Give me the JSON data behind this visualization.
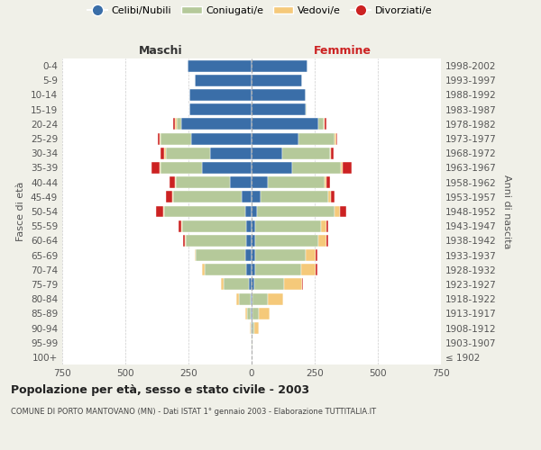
{
  "age_groups": [
    "100+",
    "95-99",
    "90-94",
    "85-89",
    "80-84",
    "75-79",
    "70-74",
    "65-69",
    "60-64",
    "55-59",
    "50-54",
    "45-49",
    "40-44",
    "35-39",
    "30-34",
    "25-29",
    "20-24",
    "15-19",
    "10-14",
    "5-9",
    "0-4"
  ],
  "birth_years": [
    "≤ 1902",
    "1903-1907",
    "1908-1912",
    "1913-1917",
    "1918-1922",
    "1923-1927",
    "1928-1932",
    "1933-1937",
    "1938-1942",
    "1943-1947",
    "1948-1952",
    "1953-1957",
    "1958-1962",
    "1963-1967",
    "1968-1972",
    "1973-1977",
    "1978-1982",
    "1983-1987",
    "1988-1992",
    "1993-1997",
    "1998-2002"
  ],
  "maschi_celibi": [
    0,
    0,
    0,
    2,
    5,
    10,
    20,
    25,
    20,
    20,
    25,
    40,
    85,
    195,
    165,
    240,
    280,
    245,
    245,
    225,
    255
  ],
  "maschi_coniugati": [
    0,
    1,
    5,
    15,
    45,
    100,
    165,
    195,
    240,
    255,
    320,
    270,
    215,
    165,
    175,
    120,
    15,
    2,
    0,
    0,
    0
  ],
  "maschi_vedovi": [
    0,
    0,
    2,
    8,
    10,
    10,
    10,
    5,
    5,
    5,
    5,
    5,
    5,
    5,
    5,
    5,
    10,
    0,
    0,
    0,
    0
  ],
  "maschi_divorziati": [
    0,
    0,
    0,
    0,
    0,
    0,
    0,
    0,
    5,
    10,
    30,
    25,
    20,
    30,
    15,
    5,
    5,
    0,
    0,
    0,
    0
  ],
  "femmine_nubili": [
    0,
    0,
    2,
    5,
    5,
    10,
    15,
    15,
    15,
    15,
    20,
    35,
    65,
    160,
    120,
    185,
    265,
    215,
    215,
    200,
    220
  ],
  "femmine_coniugate": [
    0,
    2,
    10,
    25,
    60,
    120,
    180,
    200,
    250,
    260,
    310,
    270,
    225,
    195,
    190,
    145,
    20,
    2,
    0,
    0,
    0
  ],
  "femmine_vedove": [
    0,
    2,
    15,
    40,
    60,
    70,
    60,
    40,
    30,
    20,
    20,
    10,
    5,
    5,
    5,
    5,
    5,
    0,
    0,
    0,
    0
  ],
  "femmine_divorziate": [
    0,
    0,
    0,
    0,
    0,
    5,
    5,
    5,
    10,
    10,
    25,
    15,
    15,
    35,
    10,
    5,
    5,
    0,
    0,
    0,
    0
  ],
  "color_cel": "#3a6ea8",
  "color_con": "#b5c99a",
  "color_ved": "#f5c97a",
  "color_div": "#cc2222",
  "bg_color": "#f0f0e8",
  "plot_bg": "#ffffff",
  "grid_color": "#cccccc",
  "title": "Popolazione per età, sesso e stato civile - 2003",
  "subtitle": "COMUNE DI PORTO MANTOVANO (MN) - Dati ISTAT 1° gennaio 2003 - Elaborazione TUTTITALIA.IT",
  "xlim": 750,
  "legend_labels": [
    "Celibi/Nubili",
    "Coniugati/e",
    "Vedovi/e",
    "Divorziati/e"
  ],
  "maschi_label": "Maschi",
  "femmine_label": "Femmine",
  "ylabel_left": "Fasce di età",
  "ylabel_right": "Anni di nascita"
}
